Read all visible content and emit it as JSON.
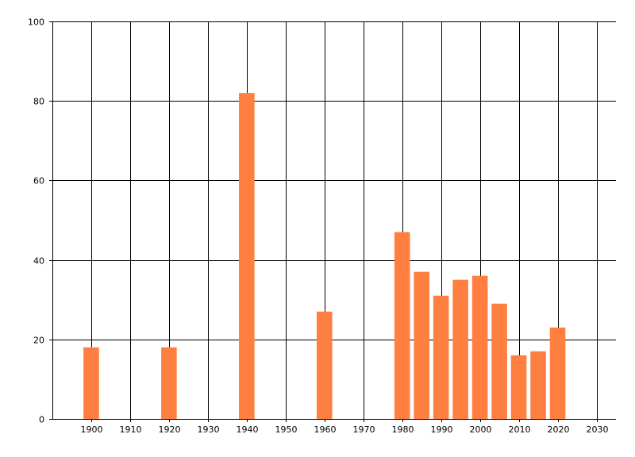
{
  "chart_data": {
    "type": "bar",
    "x": [
      1900,
      1920,
      1940,
      1960,
      1980,
      1985,
      1990,
      1995,
      2000,
      2005,
      2010,
      2015,
      2020
    ],
    "values": [
      18,
      18,
      82,
      27,
      47,
      37,
      31,
      35,
      36,
      29,
      16,
      17,
      23
    ],
    "xlim": [
      1890,
      2035
    ],
    "ylim": [
      0,
      100
    ],
    "x_ticks": [
      "1900",
      "1910",
      "1920",
      "1930",
      "1940",
      "1950",
      "1960",
      "1970",
      "1980",
      "1990",
      "2000",
      "2010",
      "2020",
      "2030"
    ],
    "y_ticks": [
      "0",
      "20",
      "40",
      "60",
      "80",
      "100"
    ],
    "grid": true,
    "bar_color": "#FF7F40",
    "title": "",
    "xlabel": "",
    "ylabel": ""
  }
}
